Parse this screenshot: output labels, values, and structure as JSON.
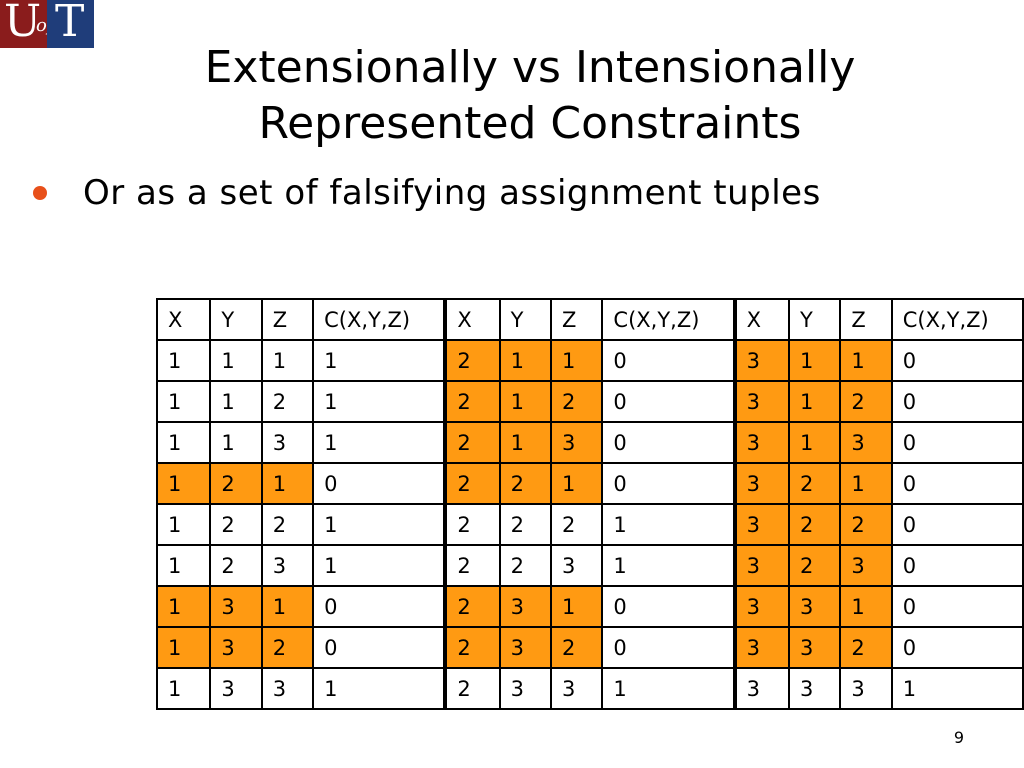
{
  "logo": {
    "u": "U",
    "of": "of",
    "t": "T"
  },
  "slide": {
    "title_line1": "Extensionally vs Intensionally",
    "title_line2": "Represented Constraints",
    "bullet": "Or as a set of falsifying assignment tuples",
    "page_number": "9"
  },
  "colors": {
    "highlight": "#ff9a12",
    "bullet": "#e8501a"
  },
  "table": {
    "headers": [
      "X",
      "Y",
      "Z",
      "C(X,Y,Z)",
      "X",
      "Y",
      "Z",
      "C(X,Y,Z)",
      "X",
      "Y",
      "Z",
      "C(X,Y,Z)"
    ],
    "rows": [
      [
        "1",
        "1",
        "1",
        "1",
        "2",
        "1",
        "1",
        "0",
        "3",
        "1",
        "1",
        "0"
      ],
      [
        "1",
        "1",
        "2",
        "1",
        "2",
        "1",
        "2",
        "0",
        "3",
        "1",
        "2",
        "0"
      ],
      [
        "1",
        "1",
        "3",
        "1",
        "2",
        "1",
        "3",
        "0",
        "3",
        "1",
        "3",
        "0"
      ],
      [
        "1",
        "2",
        "1",
        "0",
        "2",
        "2",
        "1",
        "0",
        "3",
        "2",
        "1",
        "0"
      ],
      [
        "1",
        "2",
        "2",
        "1",
        "2",
        "2",
        "2",
        "1",
        "3",
        "2",
        "2",
        "0"
      ],
      [
        "1",
        "2",
        "3",
        "1",
        "2",
        "2",
        "3",
        "1",
        "3",
        "2",
        "3",
        "0"
      ],
      [
        "1",
        "3",
        "1",
        "0",
        "2",
        "3",
        "1",
        "0",
        "3",
        "3",
        "1",
        "0"
      ],
      [
        "1",
        "3",
        "2",
        "0",
        "2",
        "3",
        "2",
        "0",
        "3",
        "3",
        "2",
        "0"
      ],
      [
        "1",
        "3",
        "3",
        "1",
        "2",
        "3",
        "3",
        "1",
        "3",
        "3",
        "3",
        "1"
      ]
    ]
  }
}
